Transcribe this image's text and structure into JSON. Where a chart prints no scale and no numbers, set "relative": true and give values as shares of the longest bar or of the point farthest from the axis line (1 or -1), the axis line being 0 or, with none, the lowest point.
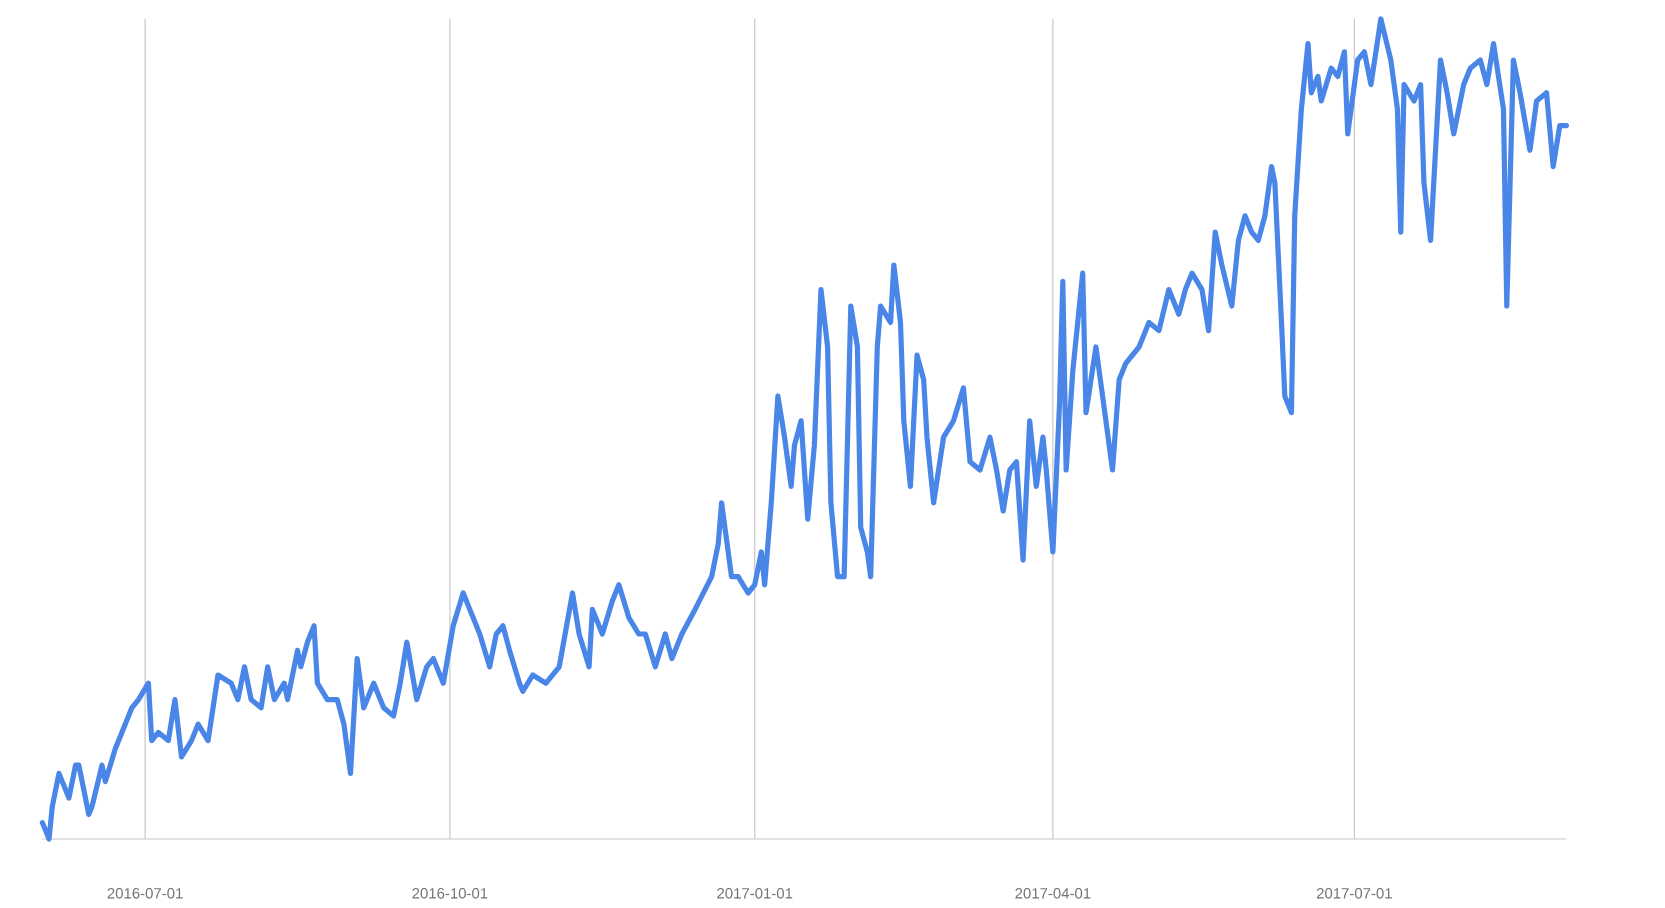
{
  "chart_data": {
    "type": "line",
    "relative": true,
    "color": "#4a86e8",
    "grid": "x",
    "xlim": [
      "2016-05-31",
      "2017-09-03"
    ],
    "xticks": [
      "2016-07-01",
      "2016-10-01",
      "2017-01-01",
      "2017-04-01",
      "2017-07-01"
    ],
    "x": [
      "2016-05-31",
      "2016-06-02",
      "2016-06-03",
      "2016-06-05",
      "2016-06-06",
      "2016-06-08",
      "2016-06-10",
      "2016-06-11",
      "2016-06-14",
      "2016-06-15",
      "2016-06-18",
      "2016-06-19",
      "2016-06-22",
      "2016-06-25",
      "2016-06-27",
      "2016-06-29",
      "2016-07-02",
      "2016-07-03",
      "2016-07-05",
      "2016-07-08",
      "2016-07-10",
      "2016-07-12",
      "2016-07-15",
      "2016-07-17",
      "2016-07-20",
      "2016-07-23",
      "2016-07-27",
      "2016-07-29",
      "2016-07-31",
      "2016-08-02",
      "2016-08-05",
      "2016-08-07",
      "2016-08-09",
      "2016-08-12",
      "2016-08-13",
      "2016-08-16",
      "2016-08-17",
      "2016-08-19",
      "2016-08-21",
      "2016-08-22",
      "2016-08-25",
      "2016-08-28",
      "2016-08-30",
      "2016-09-01",
      "2016-09-03",
      "2016-09-05",
      "2016-09-08",
      "2016-09-11",
      "2016-09-14",
      "2016-09-16",
      "2016-09-18",
      "2016-09-21",
      "2016-09-24",
      "2016-09-26",
      "2016-09-29",
      "2016-10-02",
      "2016-10-05",
      "2016-10-07",
      "2016-10-10",
      "2016-10-13",
      "2016-10-15",
      "2016-10-17",
      "2016-10-19",
      "2016-10-22",
      "2016-10-23",
      "2016-10-26",
      "2016-10-30",
      "2016-11-03",
      "2016-11-07",
      "2016-11-09",
      "2016-11-12",
      "2016-11-13",
      "2016-11-16",
      "2016-11-19",
      "2016-11-21",
      "2016-11-24",
      "2016-11-27",
      "2016-11-29",
      "2016-12-02",
      "2016-12-05",
      "2016-12-07",
      "2016-12-10",
      "2016-12-14",
      "2016-12-19",
      "2016-12-21",
      "2016-12-22",
      "2016-12-25",
      "2016-12-27",
      "2016-12-30",
      "2017-01-01",
      "2017-01-03",
      "2017-01-04",
      "2017-01-06",
      "2017-01-08",
      "2017-01-10",
      "2017-01-12",
      "2017-01-13",
      "2017-01-15",
      "2017-01-17",
      "2017-01-19",
      "2017-01-21",
      "2017-01-23",
      "2017-01-24",
      "2017-01-26",
      "2017-01-28",
      "2017-01-30",
      "2017-02-01",
      "2017-02-02",
      "2017-02-04",
      "2017-02-05",
      "2017-02-07",
      "2017-02-08",
      "2017-02-11",
      "2017-02-12",
      "2017-02-14",
      "2017-02-15",
      "2017-02-17",
      "2017-02-19",
      "2017-02-21",
      "2017-02-22",
      "2017-02-24",
      "2017-02-27",
      "2017-03-02",
      "2017-03-05",
      "2017-03-07",
      "2017-03-10",
      "2017-03-13",
      "2017-03-15",
      "2017-03-17",
      "2017-03-19",
      "2017-03-21",
      "2017-03-23",
      "2017-03-25",
      "2017-03-27",
      "2017-03-29",
      "2017-03-30",
      "2017-04-01",
      "2017-04-03",
      "2017-04-04",
      "2017-04-05",
      "2017-04-07",
      "2017-04-10",
      "2017-04-11",
      "2017-04-14",
      "2017-04-16",
      "2017-04-19",
      "2017-04-21",
      "2017-04-23",
      "2017-04-27",
      "2017-04-30",
      "2017-05-03",
      "2017-05-06",
      "2017-05-09",
      "2017-05-11",
      "2017-05-13",
      "2017-05-16",
      "2017-05-18",
      "2017-05-20",
      "2017-05-22",
      "2017-05-25",
      "2017-05-27",
      "2017-05-29",
      "2017-05-31",
      "2017-06-02",
      "2017-06-04",
      "2017-06-06",
      "2017-06-07",
      "2017-06-09",
      "2017-06-10",
      "2017-06-12",
      "2017-06-13",
      "2017-06-15",
      "2017-06-17",
      "2017-06-18",
      "2017-06-20",
      "2017-06-21",
      "2017-06-24",
      "2017-06-26",
      "2017-06-28",
      "2017-06-29",
      "2017-07-02",
      "2017-07-04",
      "2017-07-06",
      "2017-07-09",
      "2017-07-12",
      "2017-07-14",
      "2017-07-15",
      "2017-07-16",
      "2017-07-19",
      "2017-07-21",
      "2017-07-22",
      "2017-07-24",
      "2017-07-27",
      "2017-07-29",
      "2017-07-31",
      "2017-08-03",
      "2017-08-05",
      "2017-08-08",
      "2017-08-10",
      "2017-08-12",
      "2017-08-15",
      "2017-08-16",
      "2017-08-18",
      "2017-08-20",
      "2017-08-23",
      "2017-08-25",
      "2017-08-28",
      "2017-08-30",
      "2017-09-01",
      "2017-09-03"
    ],
    "values": [
      0.02,
      0.0,
      0.04,
      0.08,
      0.07,
      0.05,
      0.09,
      0.09,
      0.03,
      0.04,
      0.09,
      0.07,
      0.11,
      0.14,
      0.16,
      0.17,
      0.19,
      0.12,
      0.13,
      0.12,
      0.17,
      0.1,
      0.12,
      0.14,
      0.12,
      0.2,
      0.19,
      0.17,
      0.21,
      0.17,
      0.16,
      0.21,
      0.17,
      0.19,
      0.17,
      0.23,
      0.21,
      0.24,
      0.26,
      0.19,
      0.17,
      0.17,
      0.14,
      0.08,
      0.22,
      0.16,
      0.19,
      0.16,
      0.15,
      0.19,
      0.24,
      0.17,
      0.21,
      0.22,
      0.19,
      0.26,
      0.3,
      0.28,
      0.25,
      0.21,
      0.25,
      0.26,
      0.23,
      0.19,
      0.18,
      0.2,
      0.19,
      0.21,
      0.3,
      0.25,
      0.21,
      0.28,
      0.25,
      0.29,
      0.31,
      0.27,
      0.25,
      0.25,
      0.21,
      0.25,
      0.22,
      0.25,
      0.28,
      0.32,
      0.36,
      0.41,
      0.32,
      0.32,
      0.3,
      0.31,
      0.35,
      0.31,
      0.41,
      0.54,
      0.49,
      0.43,
      0.48,
      0.51,
      0.39,
      0.48,
      0.67,
      0.6,
      0.41,
      0.32,
      0.32,
      0.65,
      0.6,
      0.38,
      0.35,
      0.32,
      0.6,
      0.65,
      0.63,
      0.7,
      0.63,
      0.51,
      0.43,
      0.59,
      0.56,
      0.49,
      0.41,
      0.49,
      0.51,
      0.55,
      0.46,
      0.45,
      0.49,
      0.45,
      0.4,
      0.45,
      0.46,
      0.34,
      0.51,
      0.43,
      0.49,
      0.45,
      0.35,
      0.53,
      0.68,
      0.45,
      0.57,
      0.69,
      0.52,
      0.6,
      0.54,
      0.45,
      0.56,
      0.58,
      0.6,
      0.63,
      0.62,
      0.67,
      0.64,
      0.67,
      0.69,
      0.67,
      0.62,
      0.74,
      0.7,
      0.65,
      0.73,
      0.76,
      0.74,
      0.73,
      0.76,
      0.82,
      0.8,
      0.63,
      0.54,
      0.52,
      0.76,
      0.89,
      0.97,
      0.91,
      0.93,
      0.9,
      0.94,
      0.93,
      0.96,
      0.86,
      0.95,
      0.96,
      0.92,
      1.0,
      0.95,
      0.89,
      0.74,
      0.92,
      0.9,
      0.92,
      0.8,
      0.73,
      0.95,
      0.91,
      0.86,
      0.92,
      0.94,
      0.95,
      0.92,
      0.97,
      0.89,
      0.65,
      0.95,
      0.91,
      0.84,
      0.9,
      0.91,
      0.82,
      0.87,
      0.87
    ]
  }
}
